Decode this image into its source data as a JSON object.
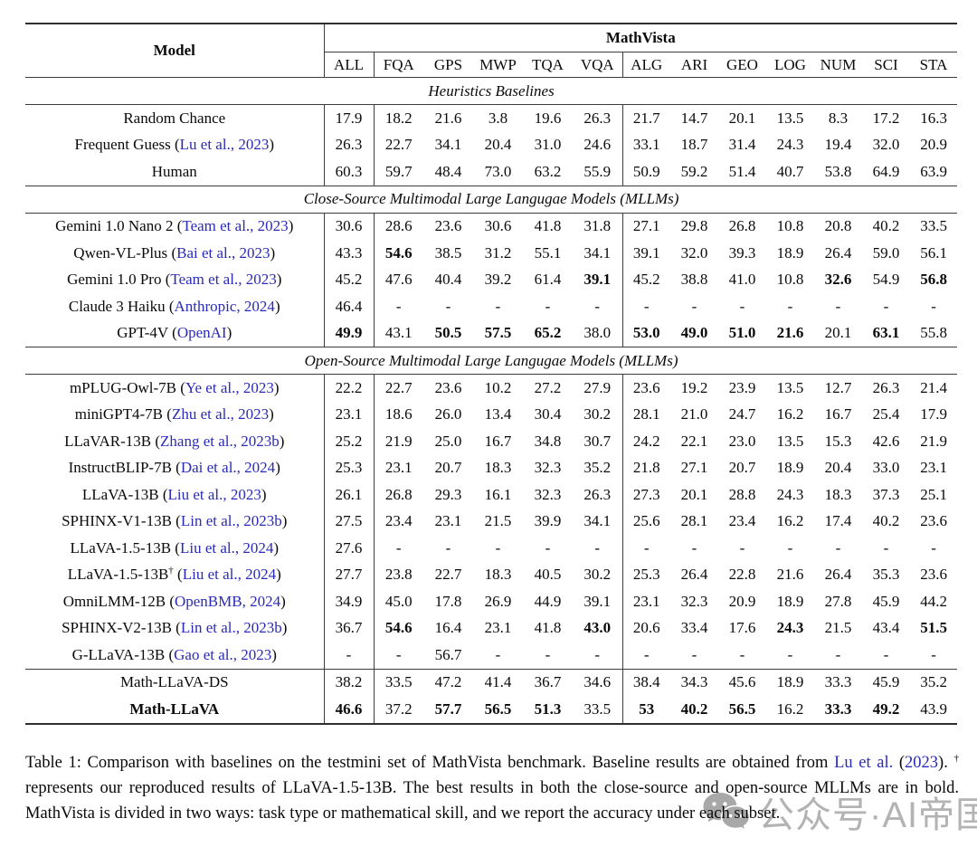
{
  "table": {
    "model_header": "Model",
    "group_header": "MathVista",
    "columns": [
      "ALL",
      "FQA",
      "GPS",
      "MWP",
      "TQA",
      "VQA",
      "ALG",
      "ARI",
      "GEO",
      "LOG",
      "NUM",
      "SCI",
      "STA"
    ],
    "sections": [
      {
        "title": "Heuristics Baselines",
        "rows": [
          {
            "name": "Random Chance",
            "cite": null,
            "values": [
              "17.9",
              "18.2",
              "21.6",
              "3.8",
              "19.6",
              "26.3",
              "21.7",
              "14.7",
              "20.1",
              "13.5",
              "8.3",
              "17.2",
              "16.3"
            ],
            "bold_idx": []
          },
          {
            "name": "Frequent Guess",
            "cite": "Lu et al., 2023",
            "values": [
              "26.3",
              "22.7",
              "34.1",
              "20.4",
              "31.0",
              "24.6",
              "33.1",
              "18.7",
              "31.4",
              "24.3",
              "19.4",
              "32.0",
              "20.9"
            ],
            "bold_idx": []
          },
          {
            "name": "Human",
            "cite": null,
            "values": [
              "60.3",
              "59.7",
              "48.4",
              "73.0",
              "63.2",
              "55.9",
              "50.9",
              "59.2",
              "51.4",
              "40.7",
              "53.8",
              "64.9",
              "63.9"
            ],
            "bold_idx": []
          }
        ]
      },
      {
        "title": "Close-Source Multimodal Large Langugae Models (MLLMs)",
        "rows": [
          {
            "name": "Gemini 1.0 Nano 2",
            "cite": "Team et al., 2023",
            "values": [
              "30.6",
              "28.6",
              "23.6",
              "30.6",
              "41.8",
              "31.8",
              "27.1",
              "29.8",
              "26.8",
              "10.8",
              "20.8",
              "40.2",
              "33.5"
            ],
            "bold_idx": []
          },
          {
            "name": "Qwen-VL-Plus",
            "cite": "Bai et al., 2023",
            "values": [
              "43.3",
              "54.6",
              "38.5",
              "31.2",
              "55.1",
              "34.1",
              "39.1",
              "32.0",
              "39.3",
              "18.9",
              "26.4",
              "59.0",
              "56.1"
            ],
            "bold_idx": [
              1
            ]
          },
          {
            "name": "Gemini 1.0 Pro",
            "cite": "Team et al., 2023",
            "values": [
              "45.2",
              "47.6",
              "40.4",
              "39.2",
              "61.4",
              "39.1",
              "45.2",
              "38.8",
              "41.0",
              "10.8",
              "32.6",
              "54.9",
              "56.8"
            ],
            "bold_idx": [
              5,
              10,
              12
            ]
          },
          {
            "name": "Claude 3 Haiku",
            "cite": "Anthropic, 2024",
            "values": [
              "46.4",
              "-",
              "-",
              "-",
              "-",
              "-",
              "-",
              "-",
              "-",
              "-",
              "-",
              "-",
              "-"
            ],
            "bold_idx": []
          },
          {
            "name": "GPT-4V",
            "cite": "OpenAI",
            "values": [
              "49.9",
              "43.1",
              "50.5",
              "57.5",
              "65.2",
              "38.0",
              "53.0",
              "49.0",
              "51.0",
              "21.6",
              "20.1",
              "63.1",
              "55.8"
            ],
            "bold_idx": [
              0,
              2,
              3,
              4,
              6,
              7,
              8,
              9,
              11
            ]
          }
        ]
      },
      {
        "title": "Open-Source Multimodal Large Langugae Models (MLLMs)",
        "rows": [
          {
            "name": "mPLUG-Owl-7B",
            "cite": "Ye et al., 2023",
            "values": [
              "22.2",
              "22.7",
              "23.6",
              "10.2",
              "27.2",
              "27.9",
              "23.6",
              "19.2",
              "23.9",
              "13.5",
              "12.7",
              "26.3",
              "21.4"
            ],
            "bold_idx": []
          },
          {
            "name": "miniGPT4-7B",
            "cite": "Zhu et al., 2023",
            "values": [
              "23.1",
              "18.6",
              "26.0",
              "13.4",
              "30.4",
              "30.2",
              "28.1",
              "21.0",
              "24.7",
              "16.2",
              "16.7",
              "25.4",
              "17.9"
            ],
            "bold_idx": []
          },
          {
            "name": "LLaVAR-13B",
            "cite": "Zhang et al., 2023b",
            "values": [
              "25.2",
              "21.9",
              "25.0",
              "16.7",
              "34.8",
              "30.7",
              "24.2",
              "22.1",
              "23.0",
              "13.5",
              "15.3",
              "42.6",
              "21.9"
            ],
            "bold_idx": []
          },
          {
            "name": "InstructBLIP-7B",
            "cite": "Dai et al., 2024",
            "values": [
              "25.3",
              "23.1",
              "20.7",
              "18.3",
              "32.3",
              "35.2",
              "21.8",
              "27.1",
              "20.7",
              "18.9",
              "20.4",
              "33.0",
              "23.1"
            ],
            "bold_idx": []
          },
          {
            "name": "LLaVA-13B",
            "cite": "Liu et al., 2023",
            "values": [
              "26.1",
              "26.8",
              "29.3",
              "16.1",
              "32.3",
              "26.3",
              "27.3",
              "20.1",
              "28.8",
              "24.3",
              "18.3",
              "37.3",
              "25.1"
            ],
            "bold_idx": []
          },
          {
            "name": "SPHINX-V1-13B",
            "cite": "Lin et al., 2023b",
            "values": [
              "27.5",
              "23.4",
              "23.1",
              "21.5",
              "39.9",
              "34.1",
              "25.6",
              "28.1",
              "23.4",
              "16.2",
              "17.4",
              "40.2",
              "23.6"
            ],
            "bold_idx": []
          },
          {
            "name": "LLaVA-1.5-13B",
            "cite": "Liu et al., 2024",
            "values": [
              "27.6",
              "-",
              "-",
              "-",
              "-",
              "-",
              "-",
              "-",
              "-",
              "-",
              "-",
              "-",
              "-"
            ],
            "bold_idx": []
          },
          {
            "name": "LLaVA-1.5-13B",
            "sup": "†",
            "cite": "Liu et al., 2024",
            "values": [
              "27.7",
              "23.8",
              "22.7",
              "18.3",
              "40.5",
              "30.2",
              "25.3",
              "26.4",
              "22.8",
              "21.6",
              "26.4",
              "35.3",
              "23.6"
            ],
            "bold_idx": []
          },
          {
            "name": "OmniLMM-12B",
            "cite": "OpenBMB, 2024",
            "values": [
              "34.9",
              "45.0",
              "17.8",
              "26.9",
              "44.9",
              "39.1",
              "23.1",
              "32.3",
              "20.9",
              "18.9",
              "27.8",
              "45.9",
              "44.2"
            ],
            "bold_idx": []
          },
          {
            "name": "SPHINX-V2-13B",
            "cite": "Lin et al., 2023b",
            "values": [
              "36.7",
              "54.6",
              "16.4",
              "23.1",
              "41.8",
              "43.0",
              "20.6",
              "33.4",
              "17.6",
              "24.3",
              "21.5",
              "43.4",
              "51.5"
            ],
            "bold_idx": [
              1,
              5,
              9,
              12
            ]
          },
          {
            "name": "G-LLaVA-13B",
            "cite": "Gao et al., 2023",
            "values": [
              "-",
              "-",
              "56.7",
              "-",
              "-",
              "-",
              "-",
              "-",
              "-",
              "-",
              "-",
              "-",
              "-"
            ],
            "bold_idx": []
          }
        ]
      },
      {
        "title": null,
        "rows": [
          {
            "name": "Math-LLaVA-DS",
            "cite": null,
            "values": [
              "38.2",
              "33.5",
              "47.2",
              "41.4",
              "36.7",
              "34.6",
              "38.4",
              "34.3",
              "45.6",
              "18.9",
              "33.3",
              "45.9",
              "35.2"
            ],
            "bold_idx": []
          },
          {
            "name": "Math-LLaVA",
            "cite": null,
            "bold_name": true,
            "values": [
              "46.6",
              "37.2",
              "57.7",
              "56.5",
              "51.3",
              "33.5",
              "53",
              "40.2",
              "56.5",
              "16.2",
              "33.3",
              "49.2",
              "43.9"
            ],
            "bold_idx": [
              0,
              2,
              3,
              4,
              6,
              7,
              8,
              10,
              11
            ]
          }
        ]
      }
    ]
  },
  "caption": {
    "segments": [
      {
        "text": "Table 1: Comparison with baselines on the testmini set of MathVista benchmark. Baseline results are obtained from ",
        "style": "text"
      },
      {
        "text": "Lu et al.",
        "style": "link"
      },
      {
        "text": " (",
        "style": "text"
      },
      {
        "text": "2023",
        "style": "link"
      },
      {
        "text": "). ",
        "style": "text"
      },
      {
        "text": "†",
        "style": "sup"
      },
      {
        "text": " represents our reproduced results of LLaVA-1.5-13B. The best results in both the close-source and open-source MLLMs are in bold. MathVista is divided in two ways: task type or mathematical skill, and we report the accuracy under each subset.",
        "style": "text"
      }
    ]
  },
  "watermark": {
    "icon": "wechat-icon",
    "text": "公众号·AI帝国"
  },
  "colors": {
    "link_blue": "#2a2ab8",
    "rule": "#3c3c3c",
    "watermark_gray": "#a6a6a6"
  }
}
